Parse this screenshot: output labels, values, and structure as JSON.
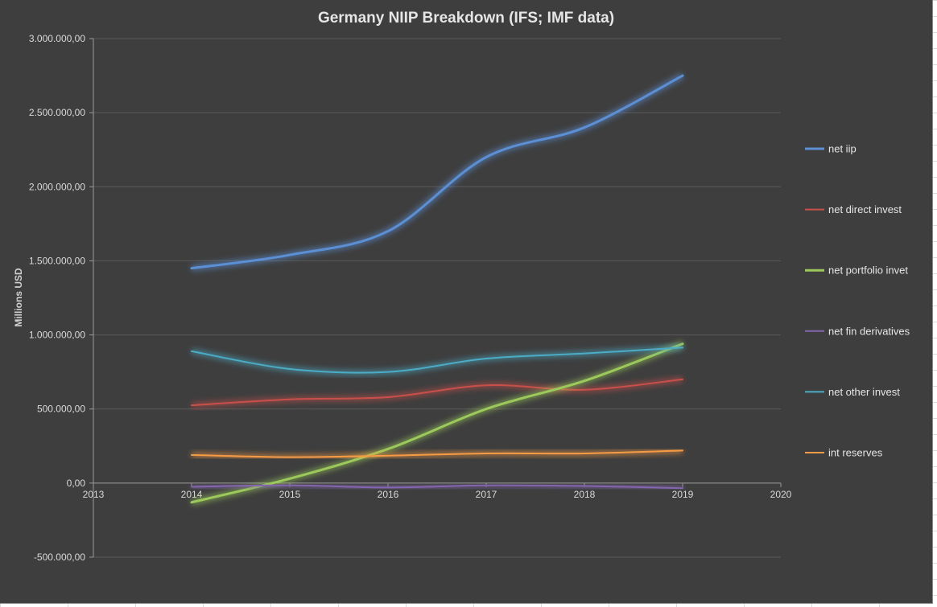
{
  "chart_data": {
    "type": "line",
    "title": "Germany NIIP Breakdown (IFS; IMF data)",
    "xlabel": "",
    "ylabel": "Millions USD",
    "xlim": [
      2013,
      2020
    ],
    "ylim": [
      -500000,
      3000000
    ],
    "x_ticks": [
      "2013",
      "2014",
      "2015",
      "2016",
      "2017",
      "2018",
      "2019",
      "2020"
    ],
    "y_ticks": [
      "3.000.000,00",
      "2.500.000,00",
      "2.000.000,00",
      "1.500.000,00",
      "1.000.000,00",
      "500.000,00",
      "0,00",
      "-500.000,00"
    ],
    "grid": "horizontal",
    "legend_position": "right",
    "smooth": true,
    "x": [
      2014,
      2015,
      2016,
      2017,
      2018,
      2019
    ],
    "series": [
      {
        "name": "net iip",
        "color": "#5b8fd6",
        "width": 3,
        "values": [
          1450000,
          1540000,
          1700000,
          2200000,
          2400000,
          2750000
        ]
      },
      {
        "name": "net direct invest",
        "color": "#c9504a",
        "width": 2,
        "values": [
          525000,
          565000,
          580000,
          660000,
          630000,
          700000
        ]
      },
      {
        "name": "net portfolio invet",
        "color": "#9bc95a",
        "width": 3,
        "values": [
          -130000,
          30000,
          230000,
          500000,
          690000,
          940000
        ]
      },
      {
        "name": "net fin derivatives",
        "color": "#8466ae",
        "width": 2,
        "values": [
          -25000,
          -15000,
          -30000,
          -15000,
          -20000,
          -35000
        ]
      },
      {
        "name": "net other invest",
        "color": "#4bacc6",
        "width": 2,
        "values": [
          890000,
          770000,
          750000,
          840000,
          875000,
          915000
        ]
      },
      {
        "name": "int reserves",
        "color": "#f59b45",
        "width": 2,
        "values": [
          190000,
          175000,
          185000,
          200000,
          200000,
          220000
        ]
      }
    ]
  }
}
